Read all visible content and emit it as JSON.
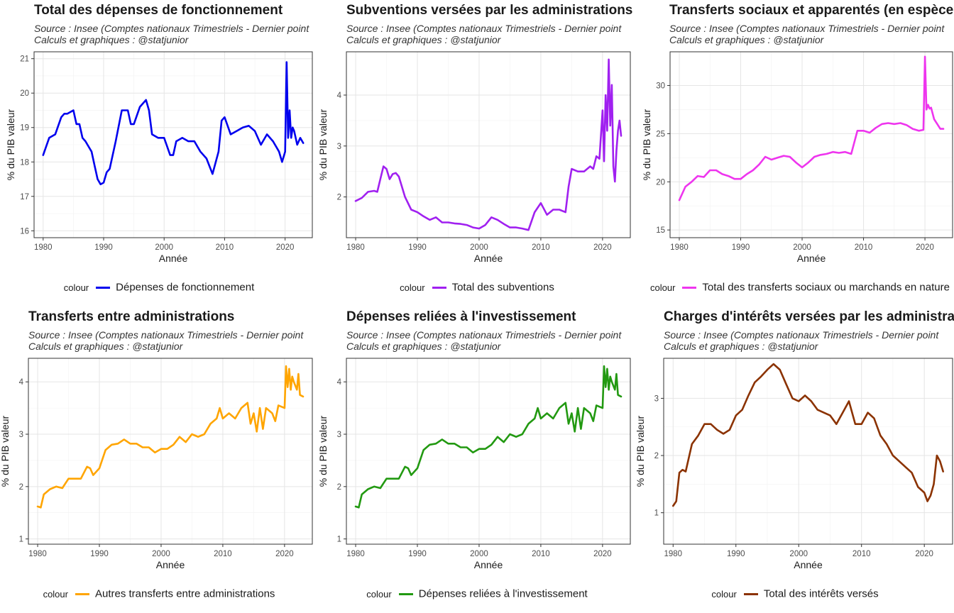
{
  "source_line": "Source : Insee (Comptes nationaux Trimestriels - Dernier point",
  "credit_line": "Calculs et graphiques : @statjunior",
  "legend_title": "colour",
  "chart_data": [
    {
      "type": "line",
      "title": "Total des dépenses de fonctionnement",
      "xlabel": "Année",
      "ylabel": "% du PIB valeur",
      "xlim": [
        1978.5,
        2024.5
      ],
      "ylim": [
        15.8,
        21.2
      ],
      "xticks": [
        1980,
        1990,
        2000,
        2010,
        2020
      ],
      "yticks": [
        16,
        17,
        18,
        19,
        20,
        21
      ],
      "color": "#0000ee",
      "series_name": "Dépenses de fonctionnement",
      "x": [
        1980,
        1981,
        1982,
        1983,
        1983.5,
        1984,
        1985,
        1985.5,
        1986,
        1986.5,
        1987,
        1988,
        1988.5,
        1989,
        1989.5,
        1990,
        1990.5,
        1991,
        1992,
        1993,
        1994,
        1994.5,
        1995,
        1996,
        1997,
        1997.5,
        1998,
        1999,
        2000,
        2001,
        2001.5,
        2002,
        2003,
        2004,
        2005,
        2006,
        2007,
        2008,
        2009,
        2009.5,
        2010,
        2011,
        2012,
        2013,
        2014,
        2015,
        2016,
        2017,
        2018,
        2019,
        2019.5,
        2020,
        2020.25,
        2020.5,
        2020.75,
        2021,
        2021.25,
        2021.5,
        2022,
        2022.5,
        2023
      ],
      "y": [
        18.2,
        18.7,
        18.8,
        19.3,
        19.4,
        19.4,
        19.5,
        19.1,
        19.1,
        18.7,
        18.6,
        18.3,
        17.9,
        17.5,
        17.35,
        17.4,
        17.7,
        17.8,
        18.6,
        19.5,
        19.5,
        19.1,
        19.1,
        19.6,
        19.8,
        19.5,
        18.8,
        18.7,
        18.7,
        18.2,
        18.2,
        18.6,
        18.7,
        18.6,
        18.6,
        18.3,
        18.1,
        17.65,
        18.3,
        19.2,
        19.3,
        18.8,
        18.9,
        19.0,
        19.05,
        18.9,
        18.5,
        18.8,
        18.6,
        18.3,
        18.0,
        18.3,
        20.9,
        18.7,
        19.5,
        18.7,
        19.0,
        18.9,
        18.5,
        18.7,
        18.55
      ]
    },
    {
      "type": "line",
      "title": "Subventions versées par les administrations",
      "xlabel": "Année",
      "ylabel": "% du PIB valeur",
      "xlim": [
        1978.5,
        2024.5
      ],
      "ylim": [
        1.2,
        4.85
      ],
      "xticks": [
        1980,
        1990,
        2000,
        2010,
        2020
      ],
      "yticks": [
        2,
        3,
        4
      ],
      "color": "#a020f0",
      "series_name": "Total des subventions",
      "x": [
        1980,
        1981,
        1982,
        1983,
        1983.5,
        1984,
        1984.5,
        1985,
        1985.5,
        1986,
        1986.5,
        1987,
        1988,
        1989,
        1990,
        1991,
        1992,
        1993,
        1994,
        1995,
        1996,
        1997,
        1998,
        1999,
        2000,
        2001,
        2002,
        2003,
        2004,
        2005,
        2006,
        2007,
        2008,
        2009,
        2010,
        2011,
        2012,
        2013,
        2014,
        2014.5,
        2015,
        2016,
        2017,
        2018,
        2018.5,
        2019,
        2019.5,
        2020,
        2020.25,
        2020.5,
        2020.75,
        2021,
        2021.25,
        2021.5,
        2021.75,
        2022,
        2022.25,
        2022.5,
        2022.75,
        2023
      ],
      "y": [
        1.92,
        1.98,
        2.1,
        2.12,
        2.1,
        2.35,
        2.6,
        2.55,
        2.35,
        2.45,
        2.47,
        2.4,
        2.0,
        1.75,
        1.7,
        1.62,
        1.55,
        1.6,
        1.5,
        1.5,
        1.48,
        1.47,
        1.45,
        1.4,
        1.38,
        1.45,
        1.6,
        1.55,
        1.47,
        1.4,
        1.4,
        1.38,
        1.35,
        1.7,
        1.88,
        1.65,
        1.75,
        1.75,
        1.7,
        2.2,
        2.55,
        2.5,
        2.5,
        2.6,
        2.55,
        2.8,
        2.75,
        3.7,
        2.7,
        4.0,
        3.3,
        4.7,
        3.4,
        4.2,
        2.6,
        2.3,
        2.9,
        3.3,
        3.5,
        3.2
      ]
    },
    {
      "type": "line",
      "title": "Transferts sociaux et apparentés (en espèces)",
      "xlabel": "Année",
      "ylabel": "% du PIB valeur",
      "xlim": [
        1978.5,
        2024.5
      ],
      "ylim": [
        14.2,
        33.5
      ],
      "xticks": [
        1980,
        1990,
        2000,
        2010,
        2020
      ],
      "yticks": [
        15,
        20,
        25,
        30
      ],
      "color": "#ee35ee",
      "series_name": "Total des transferts sociaux ou marchands en nature",
      "x": [
        1980,
        1981,
        1982,
        1983,
        1984,
        1985,
        1986,
        1987,
        1988,
        1989,
        1990,
        1991,
        1992,
        1993,
        1994,
        1995,
        1996,
        1997,
        1998,
        1999,
        2000,
        2001,
        2002,
        2003,
        2004,
        2005,
        2006,
        2007,
        2008,
        2009,
        2010,
        2011,
        2012,
        2013,
        2014,
        2015,
        2016,
        2017,
        2018,
        2019,
        2019.75,
        2020,
        2020.25,
        2020.5,
        2020.75,
        2021,
        2021.5,
        2022,
        2022.5,
        2023
      ],
      "y": [
        18.1,
        19.5,
        20.0,
        20.6,
        20.5,
        21.2,
        21.2,
        20.8,
        20.6,
        20.3,
        20.3,
        20.8,
        21.2,
        21.8,
        22.6,
        22.3,
        22.5,
        22.7,
        22.6,
        22.0,
        21.5,
        22.0,
        22.6,
        22.8,
        22.9,
        23.1,
        23.0,
        23.1,
        22.9,
        25.3,
        25.3,
        25.1,
        25.6,
        26.0,
        26.1,
        26.0,
        26.1,
        25.9,
        25.5,
        25.3,
        25.4,
        33.0,
        27.5,
        28.0,
        27.6,
        27.7,
        26.5,
        26.0,
        25.5,
        25.5
      ]
    },
    {
      "type": "line",
      "title": "Transferts entre administrations",
      "xlabel": "Année",
      "ylabel": "% du PIB valeur",
      "xlim": [
        1978.5,
        2024.5
      ],
      "ylim": [
        0.9,
        4.45
      ],
      "xticks": [
        1980,
        1990,
        2000,
        2010,
        2020
      ],
      "yticks": [
        1,
        2,
        3,
        4
      ],
      "color": "#ffa500",
      "series_name": "Autres transferts entre administrations",
      "x": [
        1980,
        1980.5,
        1981,
        1982,
        1983,
        1984,
        1985,
        1986,
        1987,
        1988,
        1988.5,
        1989,
        1990,
        1991,
        1992,
        1993,
        1994,
        1995,
        1996,
        1997,
        1998,
        1999,
        2000,
        2001,
        2002,
        2003,
        2004,
        2005,
        2006,
        2007,
        2008,
        2009,
        2009.5,
        2010,
        2011,
        2012,
        2013,
        2014,
        2014.5,
        2015,
        2015.5,
        2016,
        2016.5,
        2017,
        2018,
        2018.5,
        2019,
        2020,
        2020.25,
        2020.5,
        2020.75,
        2021,
        2021.25,
        2021.5,
        2022,
        2022.25,
        2022.5,
        2023
      ],
      "y": [
        1.62,
        1.6,
        1.85,
        1.95,
        2.0,
        1.97,
        2.15,
        2.15,
        2.15,
        2.38,
        2.35,
        2.22,
        2.35,
        2.7,
        2.8,
        2.82,
        2.9,
        2.82,
        2.82,
        2.75,
        2.75,
        2.65,
        2.72,
        2.72,
        2.8,
        2.95,
        2.85,
        3.0,
        2.95,
        3.0,
        3.2,
        3.3,
        3.5,
        3.3,
        3.4,
        3.3,
        3.5,
        3.6,
        3.2,
        3.4,
        3.05,
        3.5,
        3.1,
        3.5,
        3.4,
        3.25,
        3.55,
        3.5,
        4.3,
        3.9,
        4.25,
        3.85,
        4.1,
        4.0,
        3.85,
        4.15,
        3.75,
        3.72
      ]
    },
    {
      "type": "line",
      "title": "Dépenses reliées à l'investissement",
      "xlabel": "Année",
      "ylabel": "% du PIB valeur",
      "xlim": [
        1978.5,
        2024.5
      ],
      "ylim": [
        0.9,
        4.45
      ],
      "xticks": [
        1980,
        1990,
        2000,
        2010,
        2020
      ],
      "yticks": [
        1,
        2,
        3,
        4
      ],
      "color": "#229911",
      "series_name": "Dépenses reliées à l'investissement",
      "x": [
        1980,
        1980.5,
        1981,
        1982,
        1983,
        1984,
        1985,
        1986,
        1987,
        1988,
        1988.5,
        1989,
        1990,
        1991,
        1992,
        1993,
        1994,
        1995,
        1996,
        1997,
        1998,
        1999,
        2000,
        2001,
        2002,
        2003,
        2004,
        2005,
        2006,
        2007,
        2008,
        2009,
        2009.5,
        2010,
        2011,
        2012,
        2013,
        2014,
        2014.5,
        2015,
        2015.5,
        2016,
        2016.5,
        2017,
        2018,
        2018.5,
        2019,
        2020,
        2020.25,
        2020.5,
        2020.75,
        2021,
        2021.25,
        2021.5,
        2022,
        2022.25,
        2022.5,
        2023
      ],
      "y": [
        1.62,
        1.6,
        1.85,
        1.95,
        2.0,
        1.97,
        2.15,
        2.15,
        2.15,
        2.38,
        2.35,
        2.22,
        2.35,
        2.7,
        2.8,
        2.82,
        2.9,
        2.82,
        2.82,
        2.75,
        2.75,
        2.65,
        2.72,
        2.72,
        2.8,
        2.95,
        2.85,
        3.0,
        2.95,
        3.0,
        3.2,
        3.3,
        3.5,
        3.3,
        3.4,
        3.3,
        3.5,
        3.6,
        3.2,
        3.4,
        3.05,
        3.5,
        3.1,
        3.5,
        3.4,
        3.25,
        3.55,
        3.5,
        4.3,
        3.9,
        4.25,
        3.85,
        4.1,
        4.0,
        3.85,
        4.15,
        3.75,
        3.72
      ]
    },
    {
      "type": "line",
      "title": "Charges d'intérêts versées par les administrations",
      "xlabel": "Année",
      "ylabel": "% du PIB valeur",
      "xlim": [
        1978.5,
        2024.5
      ],
      "ylim": [
        0.45,
        3.7
      ],
      "xticks": [
        1980,
        1990,
        2000,
        2010,
        2020
      ],
      "yticks": [
        1,
        2,
        3
      ],
      "color": "#8b3200",
      "series_name": "Total des intérêts versés",
      "x": [
        1980,
        1980.5,
        1981,
        1981.5,
        1982,
        1983,
        1984,
        1985,
        1986,
        1987,
        1988,
        1989,
        1990,
        1991,
        1992,
        1993,
        1994,
        1995,
        1996,
        1997,
        1998,
        1999,
        2000,
        2001,
        2002,
        2003,
        2004,
        2005,
        2006,
        2007,
        2008,
        2009,
        2010,
        2011,
        2012,
        2013,
        2014,
        2015,
        2016,
        2017,
        2018,
        2019,
        2020,
        2020.5,
        2021,
        2021.5,
        2022,
        2022.5,
        2023
      ],
      "y": [
        1.12,
        1.2,
        1.7,
        1.75,
        1.72,
        2.2,
        2.35,
        2.55,
        2.55,
        2.45,
        2.38,
        2.45,
        2.7,
        2.8,
        3.05,
        3.28,
        3.38,
        3.5,
        3.6,
        3.5,
        3.25,
        3.0,
        2.95,
        3.05,
        2.95,
        2.8,
        2.75,
        2.7,
        2.55,
        2.75,
        2.95,
        2.55,
        2.55,
        2.75,
        2.65,
        2.35,
        2.2,
        2.0,
        1.9,
        1.8,
        1.7,
        1.45,
        1.35,
        1.2,
        1.3,
        1.5,
        2.0,
        1.9,
        1.72
      ]
    }
  ]
}
